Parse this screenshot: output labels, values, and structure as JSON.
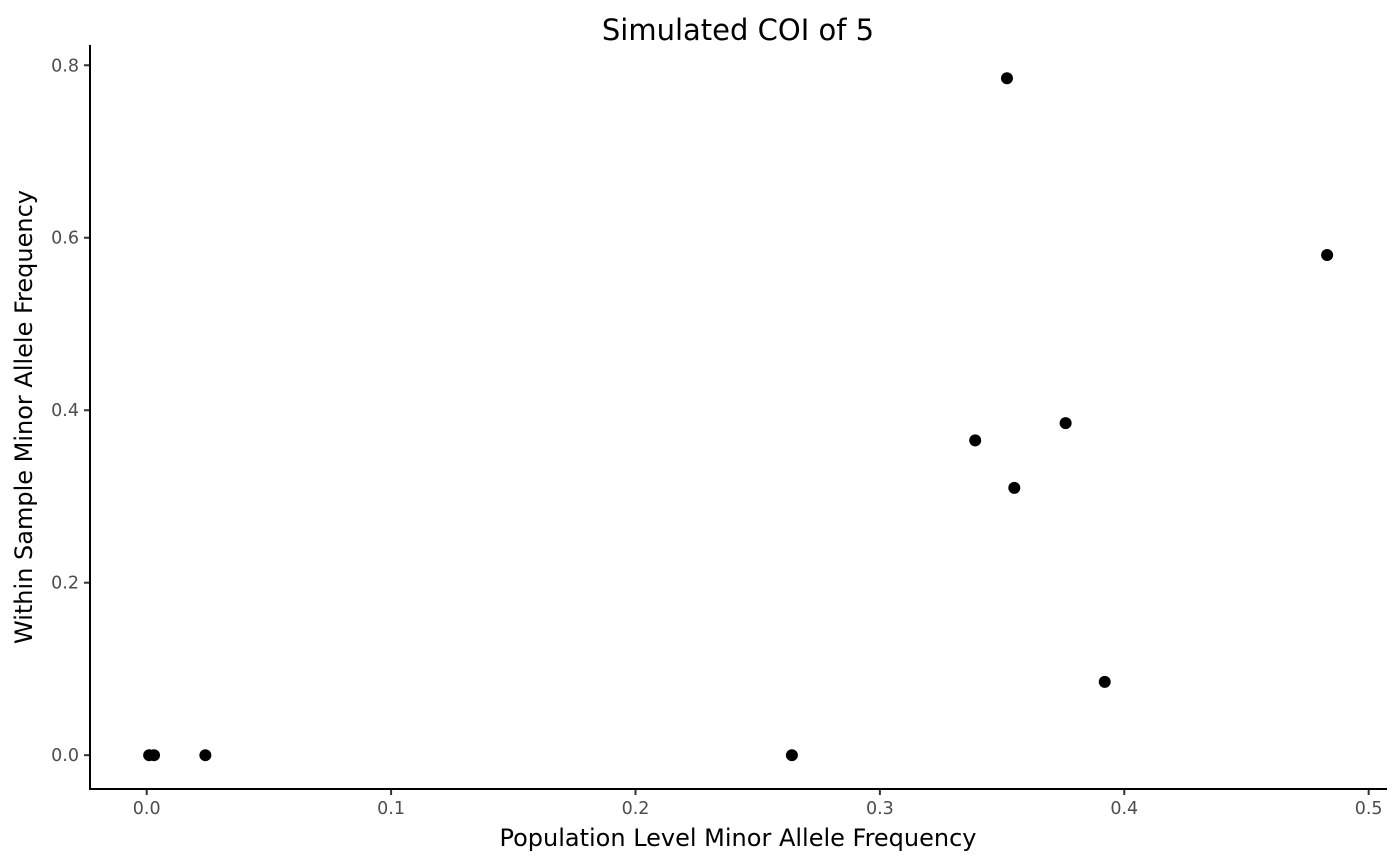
{
  "chart_data": {
    "type": "scatter",
    "title": "Simulated COI of 5",
    "xlabel": "Population Level Minor Allele Frequency",
    "ylabel": "Within Sample Minor Allele Frequency",
    "xlim": [
      -0.0232,
      0.5075
    ],
    "ylim": [
      -0.0392,
      0.8235
    ],
    "grid": false,
    "legend": "none",
    "point_color": "#000000",
    "xticks": [
      0.0,
      0.1,
      0.2,
      0.3,
      0.4,
      0.5
    ],
    "xtick_labels": [
      "0.0",
      "0.1",
      "0.2",
      "0.3",
      "0.4",
      "0.5"
    ],
    "yticks": [
      0.0,
      0.2,
      0.4,
      0.6,
      0.8
    ],
    "ytick_labels": [
      "0.0",
      "0.2",
      "0.4",
      "0.6",
      "0.8"
    ],
    "points": [
      {
        "x": 0.001,
        "y": 0.0
      },
      {
        "x": 0.003,
        "y": 0.0
      },
      {
        "x": 0.024,
        "y": 0.0
      },
      {
        "x": 0.264,
        "y": 0.0
      },
      {
        "x": 0.339,
        "y": 0.365
      },
      {
        "x": 0.352,
        "y": 0.785
      },
      {
        "x": 0.355,
        "y": 0.31
      },
      {
        "x": 0.376,
        "y": 0.385
      },
      {
        "x": 0.392,
        "y": 0.085
      },
      {
        "x": 0.483,
        "y": 0.58
      }
    ]
  }
}
